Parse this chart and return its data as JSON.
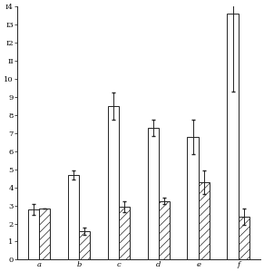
{
  "categories": [
    "a",
    "b",
    "c",
    "d",
    "e",
    "f"
  ],
  "white_bars": [
    2.8,
    4.7,
    8.5,
    7.3,
    6.8,
    13.6
  ],
  "hatched_bars": [
    2.85,
    1.6,
    2.95,
    3.25,
    4.3,
    2.4
  ],
  "white_errors": [
    0.3,
    0.25,
    0.75,
    0.45,
    0.95,
    4.3
  ],
  "hatched_errors": [
    0.0,
    0.2,
    0.3,
    0.18,
    0.65,
    0.45
  ],
  "ylim": [
    0,
    14
  ],
  "yticks": [
    0,
    1,
    2,
    3,
    4,
    5,
    6,
    7,
    8,
    9,
    10,
    11,
    12,
    13,
    14
  ],
  "ytick_labels": [
    "0",
    "1",
    "2",
    "3",
    "4",
    "5",
    "6",
    "7",
    "8",
    "9",
    "10",
    "II",
    "I2",
    "I3",
    "I4"
  ],
  "bar_width": 0.28,
  "white_color": "#ffffff",
  "hatched_color": "#ffffff",
  "hatch_pattern": "////",
  "edge_color": "#222222",
  "background_color": "#ffffff",
  "figure_size": [
    2.91,
    3.0
  ],
  "dpi": 100
}
